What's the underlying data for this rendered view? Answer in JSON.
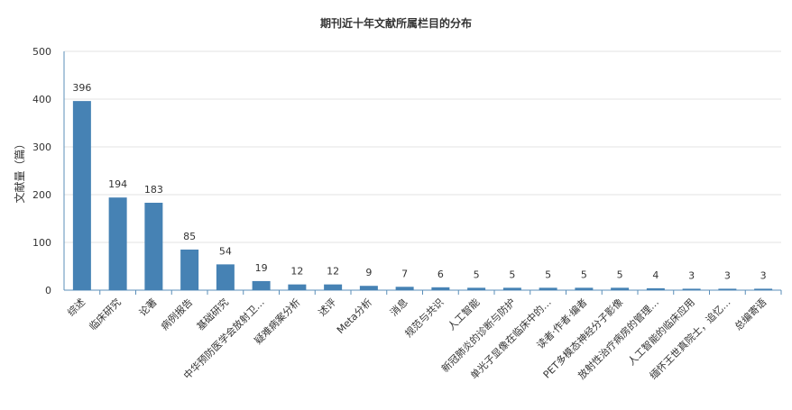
{
  "chart_data": {
    "type": "bar",
    "title": "期刊近十年文献所属栏目的分布",
    "ylabel": "文献量（篇）",
    "xlabel": "",
    "ylim": [
      0,
      500
    ],
    "yticks": [
      0,
      100,
      200,
      300,
      400,
      500
    ],
    "grid": true,
    "categories": [
      "综述",
      "临床研究",
      "论著",
      "病例报告",
      "基础研究",
      "中华预防医学会放射卫…",
      "疑难病案分析",
      "述评",
      "Meta分析",
      "消息",
      "规范与共识",
      "人工智能",
      "新冠肺炎的诊断与防护",
      "单光子显像在临床中的…",
      "读者·作者·编者",
      "PET多模态神经分子影像",
      "放射性治疗病房的管理…",
      "人工智能的临床应用",
      "缅怀王世真院士，追忆…",
      "总编寄语"
    ],
    "values": [
      396,
      194,
      183,
      85,
      54,
      19,
      12,
      12,
      9,
      7,
      6,
      5,
      5,
      5,
      5,
      5,
      4,
      3,
      3,
      3
    ],
    "bar_color": "#4682b4"
  }
}
